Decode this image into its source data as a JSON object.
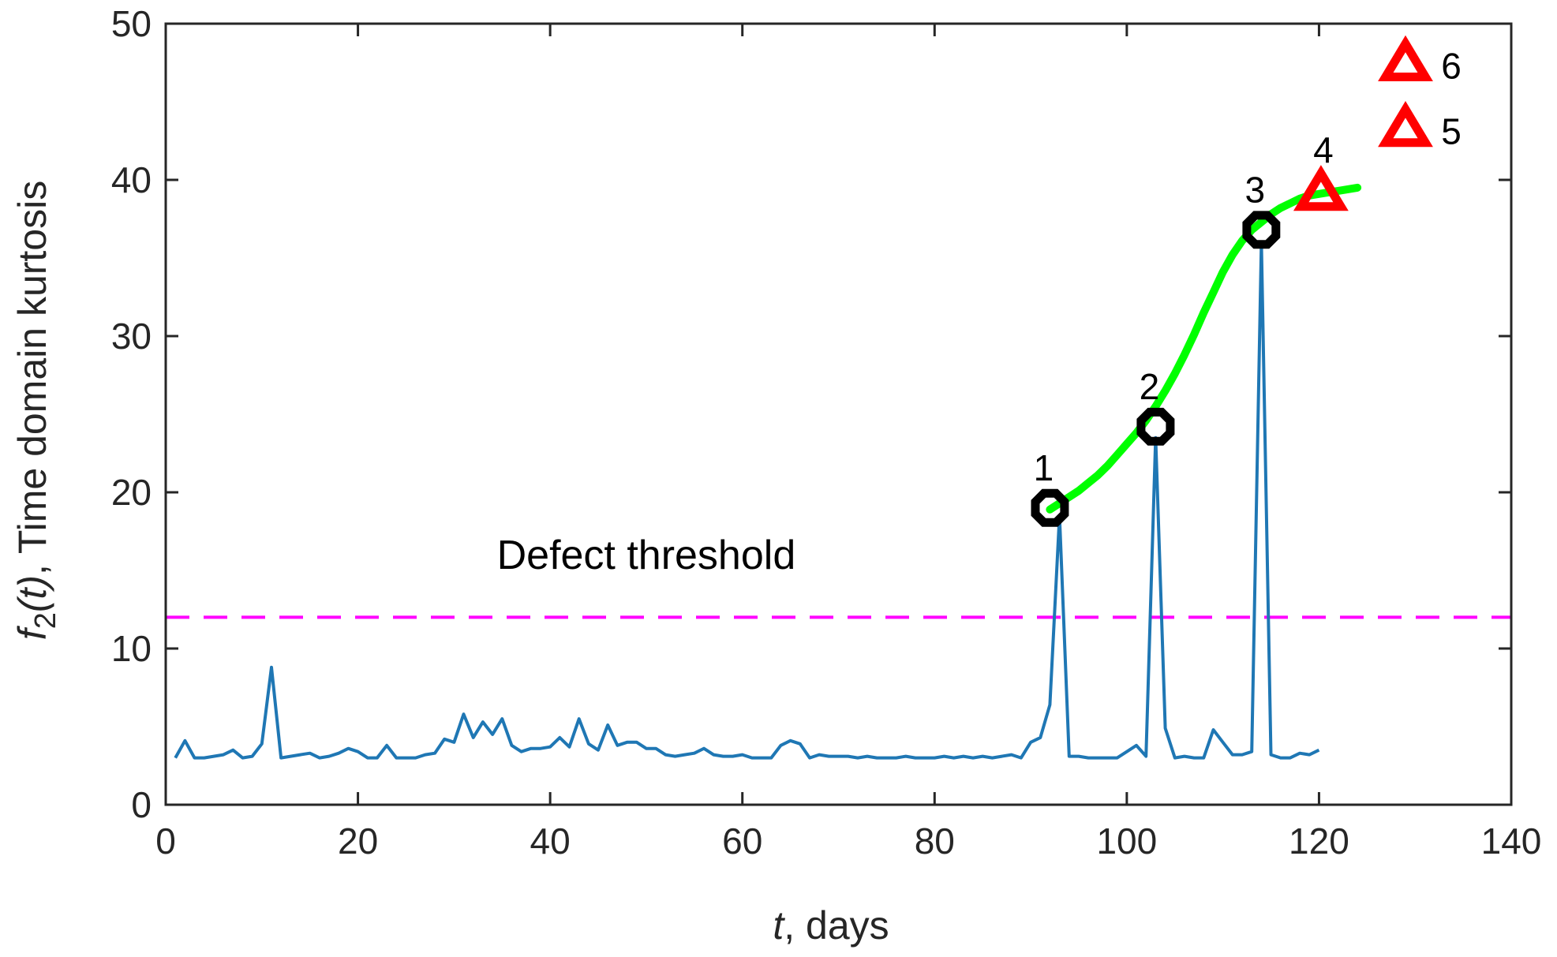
{
  "chart_data": {
    "type": "line",
    "title": "",
    "xlabel": {
      "var": "t",
      "rest": ", days"
    },
    "ylabel": {
      "f": "f",
      "sub": "2",
      "arg": "(t)",
      "rest": ", Time domain kurtosis"
    },
    "xlim": [
      0,
      140
    ],
    "ylim": [
      0,
      50
    ],
    "xticks": [
      0,
      20,
      40,
      60,
      80,
      100,
      120,
      140
    ],
    "yticks": [
      0,
      10,
      20,
      30,
      40,
      50
    ],
    "grid": false,
    "colors": {
      "signal": "#1f77b4",
      "threshold": "#ff00ff",
      "fit": "#00ff00",
      "observed": "#000000",
      "predicted": "#ff0000",
      "axes": "#262626"
    },
    "series": [
      {
        "name": "kurtosis",
        "x": [
          1,
          2,
          3,
          4,
          5,
          6,
          7,
          8,
          9,
          10,
          11,
          12,
          13,
          14,
          15,
          16,
          17,
          18,
          19,
          20,
          21,
          22,
          23,
          24,
          25,
          26,
          27,
          28,
          29,
          30,
          31,
          32,
          33,
          34,
          35,
          36,
          37,
          38,
          39,
          40,
          41,
          42,
          43,
          44,
          45,
          46,
          47,
          48,
          49,
          50,
          51,
          52,
          53,
          54,
          55,
          56,
          57,
          58,
          59,
          60,
          61,
          62,
          63,
          64,
          65,
          66,
          67,
          68,
          69,
          70,
          71,
          72,
          73,
          74,
          75,
          76,
          77,
          78,
          79,
          80,
          81,
          82,
          83,
          84,
          85,
          86,
          87,
          88,
          89,
          90,
          91,
          92,
          93,
          94,
          95,
          96,
          97,
          98,
          99,
          100,
          101,
          102,
          103,
          104,
          105,
          106,
          107,
          108,
          109,
          110,
          111,
          112,
          113,
          114,
          115,
          116,
          117,
          118,
          119,
          120
        ],
        "y": [
          3.0,
          4.1,
          3.0,
          3.0,
          3.1,
          3.2,
          3.5,
          3.0,
          3.1,
          3.9,
          8.8,
          3.0,
          3.1,
          3.2,
          3.3,
          3.0,
          3.1,
          3.3,
          3.6,
          3.4,
          3.0,
          3.0,
          3.8,
          3.0,
          3.0,
          3.0,
          3.2,
          3.3,
          4.2,
          4.0,
          5.8,
          4.3,
          5.3,
          4.5,
          5.5,
          3.8,
          3.4,
          3.6,
          3.6,
          3.7,
          4.3,
          3.7,
          5.5,
          3.9,
          3.5,
          5.1,
          3.8,
          4.0,
          4.0,
          3.6,
          3.6,
          3.2,
          3.1,
          3.2,
          3.3,
          3.6,
          3.2,
          3.1,
          3.1,
          3.2,
          3.0,
          3.0,
          3.0,
          3.8,
          4.1,
          3.9,
          3.0,
          3.2,
          3.1,
          3.1,
          3.1,
          3.0,
          3.1,
          3.0,
          3.0,
          3.0,
          3.1,
          3.0,
          3.0,
          3.0,
          3.1,
          3.0,
          3.1,
          3.0,
          3.1,
          3.0,
          3.1,
          3.2,
          3.0,
          4.0,
          4.3,
          6.4,
          18.5,
          3.1,
          3.1,
          3.0,
          3.0,
          3.0,
          3.0,
          3.4,
          3.8,
          3.1,
          23.5,
          4.9,
          3.0,
          3.1,
          3.0,
          3.0,
          4.8,
          4.0,
          3.2,
          3.2,
          3.4,
          36.0,
          3.2,
          3.0,
          3.0,
          3.3,
          3.2,
          3.5
        ]
      },
      {
        "name": "trend fit",
        "x": [
          92,
          93,
          94,
          95,
          96,
          97,
          98,
          99,
          100,
          101,
          102,
          103,
          104,
          105,
          106,
          107,
          108,
          109,
          110,
          111,
          112,
          113,
          114,
          115,
          116,
          117,
          118,
          119,
          120,
          121,
          122,
          123,
          124
        ],
        "y": [
          18.9,
          19.3,
          19.7,
          20.1,
          20.6,
          21.1,
          21.7,
          22.4,
          23.1,
          23.8,
          24.6,
          25.5,
          26.5,
          27.6,
          28.8,
          30.1,
          31.5,
          32.8,
          34.1,
          35.2,
          36.1,
          36.8,
          37.3,
          37.8,
          38.2,
          38.5,
          38.8,
          39.0,
          39.1,
          39.2,
          39.3,
          39.4,
          39.5
        ]
      }
    ],
    "threshold": {
      "y": 12,
      "label": "Defect threshold",
      "label_pos": {
        "x": 50,
        "y": 15.1
      }
    },
    "observed_points": [
      {
        "label": "1",
        "x": 92,
        "y": 19.0
      },
      {
        "label": "2",
        "x": 103,
        "y": 24.2
      },
      {
        "label": "3",
        "x": 114,
        "y": 36.8
      }
    ],
    "predicted_points": [
      {
        "label": "4",
        "x": 120.2,
        "y": 39.2
      },
      {
        "label": "5",
        "x": 129,
        "y": 43.3
      },
      {
        "label": "6",
        "x": 129,
        "y": 47.5
      }
    ]
  }
}
